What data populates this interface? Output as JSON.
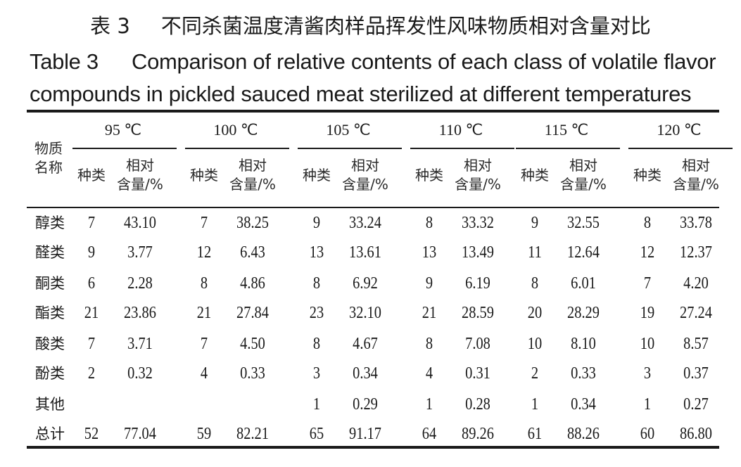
{
  "title_cn": {
    "number": "表 3",
    "text": "不同杀菌温度清酱肉样品挥发性风味物质相对含量对比"
  },
  "title_en": {
    "number": "Table 3",
    "line1": "Comparison of relative contents of each class of volatile flavor",
    "line2": "compounds in pickled sauced meat sterilized at different temperatures"
  },
  "table": {
    "row_header": [
      "物质",
      "名称"
    ],
    "groups": [
      "95 ℃",
      "100 ℃",
      "105 ℃",
      "110 ℃",
      "115 ℃",
      "120 ℃"
    ],
    "sub_headers": {
      "kinds": "种类",
      "content_line1": "相对",
      "content_line2": "含量/%"
    },
    "rows": [
      {
        "name": "醇类",
        "values": [
          "7",
          "43.10",
          "7",
          "38.25",
          "9",
          "33.24",
          "8",
          "33.32",
          "9",
          "32.55",
          "8",
          "33.78"
        ]
      },
      {
        "name": "醛类",
        "values": [
          "9",
          "3.77",
          "12",
          "6.43",
          "13",
          "13.61",
          "13",
          "13.49",
          "11",
          "12.64",
          "12",
          "12.37"
        ]
      },
      {
        "name": "酮类",
        "values": [
          "6",
          "2.28",
          "8",
          "4.86",
          "8",
          "6.92",
          "9",
          "6.19",
          "8",
          "6.01",
          "7",
          "4.20"
        ]
      },
      {
        "name": "酯类",
        "values": [
          "21",
          "23.86",
          "21",
          "27.84",
          "23",
          "32.10",
          "21",
          "28.59",
          "20",
          "28.29",
          "19",
          "27.24"
        ]
      },
      {
        "name": "酸类",
        "values": [
          "7",
          "3.71",
          "7",
          "4.50",
          "8",
          "4.67",
          "8",
          "7.08",
          "10",
          "8.10",
          "10",
          "8.57"
        ]
      },
      {
        "name": "酚类",
        "values": [
          "2",
          "0.32",
          "4",
          "0.33",
          "3",
          "0.34",
          "4",
          "0.31",
          "2",
          "0.33",
          "3",
          "0.37"
        ]
      },
      {
        "name": "其他",
        "values": [
          "",
          "",
          "",
          "",
          "1",
          "0.29",
          "1",
          "0.28",
          "1",
          "0.34",
          "1",
          "0.27"
        ]
      },
      {
        "name": "总计",
        "values": [
          "52",
          "77.04",
          "59",
          "82.21",
          "65",
          "91.17",
          "64",
          "89.26",
          "61",
          "88.26",
          "60",
          "86.80"
        ]
      }
    ]
  }
}
